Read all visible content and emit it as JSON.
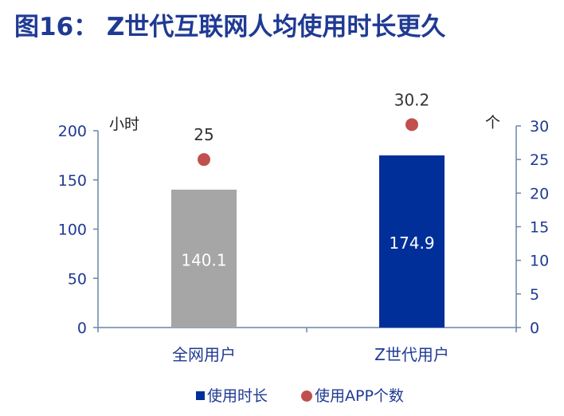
{
  "title": "图16：  Z世代互联网人均使用时长更久",
  "chart_data": {
    "type": "bar",
    "categories": [
      "全网用户",
      "Z世代用户"
    ],
    "series": [
      {
        "name": "使用时长",
        "type": "bar",
        "axis": "left",
        "values": [
          140.1,
          174.9
        ],
        "colors": [
          "#a6a6a6",
          "#002f9a"
        ]
      },
      {
        "name": "使用APP个数",
        "type": "scatter",
        "axis": "right",
        "values": [
          25,
          30.2
        ],
        "color": "#c0504d"
      }
    ],
    "y_left": {
      "unit": "小时",
      "ylim": [
        0,
        200
      ],
      "ticks": [
        0,
        50,
        100,
        150,
        200
      ]
    },
    "y_right": {
      "unit": "个",
      "ylim": [
        0,
        30
      ],
      "ticks": [
        0,
        5,
        10,
        15,
        20,
        25,
        30
      ]
    },
    "legend": {
      "placement": "bottom"
    },
    "grid": false
  }
}
